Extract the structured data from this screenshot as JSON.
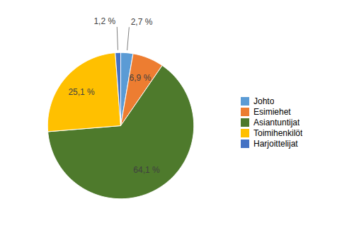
{
  "chart_data": {
    "type": "pie",
    "categories": [
      "Johto",
      "Esimiehet",
      "Asiantuntijat",
      "Toimihenkilöt",
      "Harjoittelijat"
    ],
    "values": [
      2.7,
      6.9,
      64.1,
      25.1,
      1.2
    ],
    "value_labels": [
      "2,7 %",
      "6,9 %",
      "64,1 %",
      "25,1 %",
      "1,2 %"
    ],
    "colors": [
      "#5B9BD5",
      "#ED7D31",
      "#4E7A2C",
      "#FFC000",
      "#4472C4"
    ],
    "data_labels": true,
    "legend": "right"
  }
}
